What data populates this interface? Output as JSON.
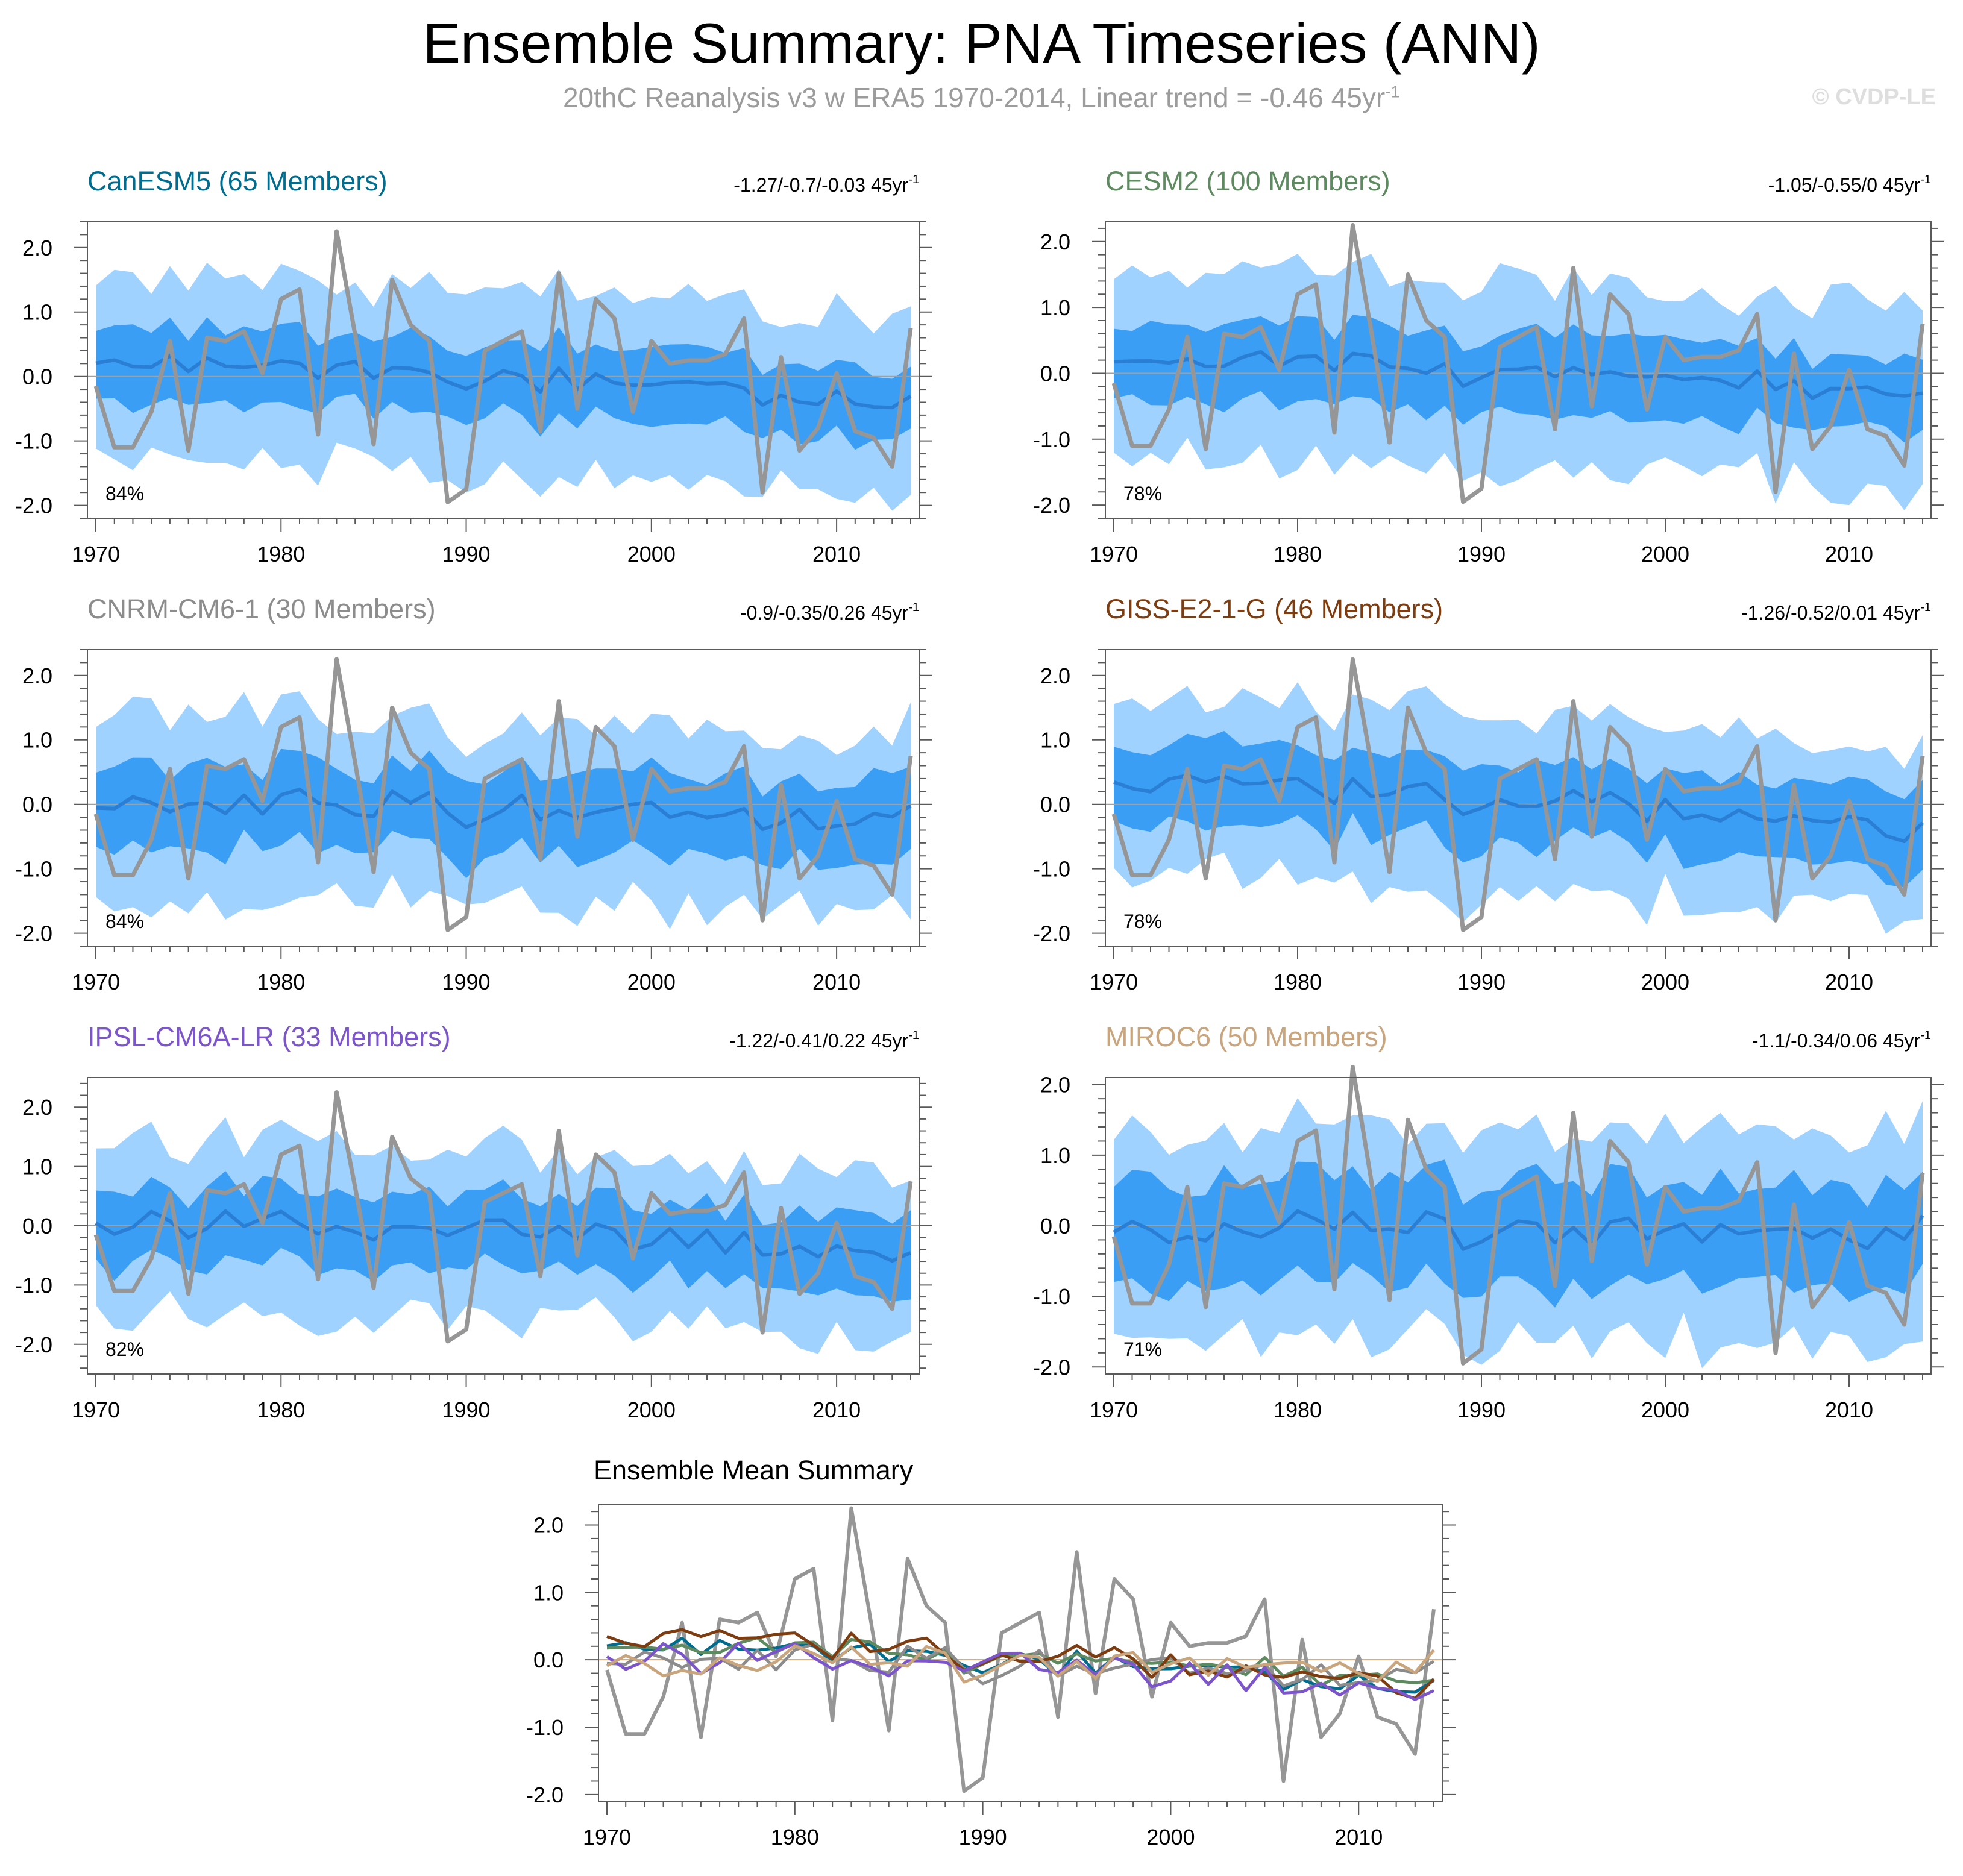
{
  "title": "Ensemble Summary: PNA Timeseries (ANN)",
  "subtitle": {
    "text": "20thC Reanalysis v3 w ERA5 1970-2014, Linear trend = -0.46 45yr",
    "sup": "-1"
  },
  "watermark": "© CVDP-LE",
  "colors": {
    "outer_band": "#9fd2ff",
    "inner_band": "#3a9ef5",
    "ens_mean": "#2a7fd4",
    "obs": "#969696",
    "zero_line": "#a0a0a0"
  },
  "obs": {
    "name": "20thC Reanalysis v3 w ERA5",
    "years": [
      1970,
      1971,
      1972,
      1973,
      1974,
      1975,
      1976,
      1977,
      1978,
      1979,
      1980,
      1981,
      1982,
      1983,
      1984,
      1985,
      1986,
      1987,
      1988,
      1989,
      1990,
      1991,
      1992,
      1993,
      1994,
      1995,
      1996,
      1997,
      1998,
      1999,
      2000,
      2001,
      2002,
      2003,
      2004,
      2005,
      2006,
      2007,
      2008,
      2009,
      2010,
      2011,
      2012,
      2013,
      2014
    ],
    "values": [
      -0.15,
      -1.1,
      -1.1,
      -0.55,
      0.55,
      -1.15,
      0.6,
      0.55,
      0.7,
      0.05,
      1.2,
      1.35,
      -0.9,
      2.25,
      0.65,
      -1.05,
      1.5,
      0.8,
      0.55,
      -1.95,
      -1.75,
      0.4,
      0.55,
      0.7,
      -0.85,
      1.6,
      -0.5,
      1.2,
      0.9,
      -0.55,
      0.55,
      0.2,
      0.25,
      0.25,
      0.35,
      0.9,
      -1.8,
      0.3,
      -1.15,
      -0.8,
      0.05,
      -0.85,
      -0.95,
      -1.4,
      0.75
    ]
  },
  "chart_data": [
    {
      "type": "area",
      "model": "CanESM5",
      "title": "CanESM5 (65 Members)",
      "title_color": "#006d8f",
      "trend_label": "-1.27/-0.7/-0.03 45yr",
      "trend_sup": "-1",
      "percent_label": "84%",
      "x_range": [
        1970,
        2014
      ],
      "ylim": [
        -2.2,
        2.4
      ],
      "yticks": [
        -2.0,
        -1.0,
        0.0,
        1.0,
        2.0
      ],
      "ytick_labels": [
        "-2.0",
        "-1.0",
        "0.0",
        "1.0",
        "2.0"
      ],
      "xticks": [
        1970,
        1980,
        1990,
        2000,
        2010
      ],
      "xtick_labels": [
        "1970",
        "1980",
        "1990",
        "2000",
        "2010"
      ],
      "ens_mean_base": [
        0.28,
        -0.33
      ],
      "ens_mean_amp": 0.12,
      "inner_half_width": 0.55,
      "outer_half_width": 1.3
    },
    {
      "type": "area",
      "model": "CESM2",
      "title": "CESM2 (100 Members)",
      "title_color": "#5e8a60",
      "trend_label": "-1.05/-0.55/0 45yr",
      "trend_sup": "-1",
      "percent_label": "78%",
      "x_range": [
        1970,
        2014
      ],
      "ylim": [
        -2.2,
        2.3
      ],
      "yticks": [
        -2.0,
        -1.0,
        0.0,
        1.0,
        2.0
      ],
      "ytick_labels": [
        "-2.0",
        "-1.0",
        "0.0",
        "1.0",
        "2.0"
      ],
      "xticks": [
        1970,
        1980,
        1990,
        2000,
        2010
      ],
      "xtick_labels": [
        "1970",
        "1980",
        "1990",
        "2000",
        "2010"
      ],
      "ens_mean_base": [
        0.25,
        -0.25
      ],
      "ens_mean_amp": 0.13,
      "inner_half_width": 0.55,
      "outer_half_width": 1.35
    },
    {
      "type": "area",
      "model": "CNRM-CM6-1",
      "title": "CNRM-CM6-1 (30 Members)",
      "title_color": "#8c8c8c",
      "trend_label": "-0.9/-0.35/0.26 45yr",
      "trend_sup": "-1",
      "percent_label": "84%",
      "x_range": [
        1970,
        2014
      ],
      "ylim": [
        -2.2,
        2.4
      ],
      "yticks": [
        -2.0,
        -1.0,
        0.0,
        1.0,
        2.0
      ],
      "ytick_labels": [
        "-2.0",
        "-1.0",
        "0.0",
        "1.0",
        "2.0"
      ],
      "xticks": [
        1970,
        1980,
        1990,
        2000,
        2010
      ],
      "xtick_labels": [
        "1970",
        "1980",
        "1990",
        "2000",
        "2010"
      ],
      "ens_mean_base": [
        0.05,
        -0.2
      ],
      "ens_mean_amp": 0.2,
      "inner_half_width": 0.6,
      "outer_half_width": 1.35
    },
    {
      "type": "area",
      "model": "GISS-E2-1-G",
      "title": "GISS-E2-1-G (46 Members)",
      "title_color": "#7d3d10",
      "trend_label": "-1.26/-0.52/0.01 45yr",
      "trend_sup": "-1",
      "percent_label": "78%",
      "x_range": [
        1970,
        2014
      ],
      "ylim": [
        -2.2,
        2.4
      ],
      "yticks": [
        -2.0,
        -1.0,
        0.0,
        1.0,
        2.0
      ],
      "ytick_labels": [
        "-2.0",
        "-1.0",
        "0.0",
        "1.0",
        "2.0"
      ],
      "xticks": [
        1970,
        1980,
        1990,
        2000,
        2010
      ],
      "xtick_labels": [
        "1970",
        "1980",
        "1990",
        "2000",
        "2010"
      ],
      "ens_mean_base": [
        0.42,
        -0.35
      ],
      "ens_mean_amp": 0.14,
      "inner_half_width": 0.6,
      "outer_half_width": 1.3
    },
    {
      "type": "area",
      "model": "IPSL-CM6A-LR",
      "title": "IPSL-CM6A-LR (33 Members)",
      "title_color": "#7b55c9",
      "trend_label": "-1.22/-0.41/0.22 45yr",
      "trend_sup": "-1",
      "percent_label": "82%",
      "x_range": [
        1970,
        2014
      ],
      "ylim": [
        -2.5,
        2.5
      ],
      "yticks": [
        -2.0,
        -1.0,
        0.0,
        1.0,
        2.0
      ],
      "ytick_labels": [
        "-2.0",
        "-1.0",
        "0.0",
        "1.0",
        "2.0"
      ],
      "xticks": [
        1970,
        1980,
        1990,
        2000,
        2010
      ],
      "xtick_labels": [
        "1970",
        "1980",
        "1990",
        "2000",
        "2010"
      ],
      "ens_mean_base": [
        0.15,
        -0.4
      ],
      "ens_mean_amp": 0.22,
      "inner_half_width": 0.6,
      "outer_half_width": 1.35
    },
    {
      "type": "area",
      "model": "MIROC6",
      "title": "MIROC6 (50 Members)",
      "title_color": "#c9a57d",
      "trend_label": "-1.1/-0.34/0.06 45yr",
      "trend_sup": "-1",
      "percent_label": "71%",
      "x_range": [
        1970,
        2014
      ],
      "ylim": [
        -2.1,
        2.1
      ],
      "yticks": [
        -2.0,
        -1.0,
        0.0,
        1.0,
        2.0
      ],
      "ytick_labels": [
        "-2.0",
        "-1.0",
        "0.0",
        "1.0",
        "2.0"
      ],
      "xticks": [
        1970,
        1980,
        1990,
        2000,
        2010
      ],
      "xtick_labels": [
        "1970",
        "1980",
        "1990",
        "2000",
        "2010"
      ],
      "ens_mean_base": [
        0.0,
        -0.1
      ],
      "ens_mean_amp": 0.2,
      "inner_half_width": 0.7,
      "outer_half_width": 1.4
    },
    {
      "type": "line",
      "title": "Ensemble Mean Summary",
      "x_range": [
        1970,
        2014
      ],
      "ylim": [
        -2.1,
        2.3
      ],
      "yticks": [
        -2.0,
        -1.0,
        0.0,
        1.0,
        2.0
      ],
      "ytick_labels": [
        "-2.0",
        "-1.0",
        "0.0",
        "1.0",
        "2.0"
      ],
      "xticks": [
        1970,
        1980,
        1990,
        2000,
        2010
      ],
      "xtick_labels": [
        "1970",
        "1980",
        "1990",
        "2000",
        "2010"
      ],
      "series_note": "one ensemble-mean line per model plus observations (gray)"
    }
  ]
}
